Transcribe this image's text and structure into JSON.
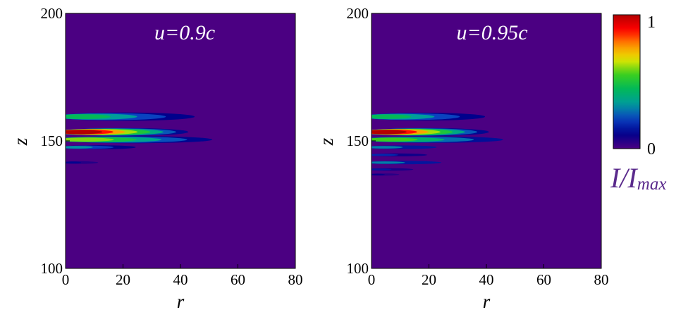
{
  "colormap": {
    "background": "#4b0082",
    "stops": [
      "#4b0082",
      "#00008b",
      "#0a40c0",
      "#009c9c",
      "#00b85a",
      "#3ccf1e",
      "#e6e600",
      "#ff8c00",
      "#ff0000",
      "#b40000"
    ]
  },
  "colorbar": {
    "max_label": "1",
    "min_label": "0",
    "label_main": "I/I",
    "label_sub": "max"
  },
  "chart_data": [
    {
      "type": "heatmap",
      "annotation": "u=0.9c",
      "xlabel": "r",
      "ylabel": "z",
      "xlim": [
        0,
        80
      ],
      "ylim": [
        100,
        200
      ],
      "xticks": [
        "0",
        "20",
        "40",
        "60",
        "80"
      ],
      "yticks": [
        "100",
        "150",
        "200"
      ],
      "bands": [
        {
          "z": 159.5,
          "r_end": 50,
          "intensity": 0.45,
          "width": 1.7
        },
        {
          "z": 153.5,
          "r_end": 46,
          "intensity": 1.0,
          "width": 1.5
        },
        {
          "z": 150.5,
          "r_end": 56,
          "intensity": 0.6,
          "width": 1.4
        },
        {
          "z": 147.5,
          "r_end": 28,
          "intensity": 0.32,
          "width": 0.8
        },
        {
          "z": 141.5,
          "r_end": 14,
          "intensity": 0.12,
          "width": 0.5
        }
      ]
    },
    {
      "type": "heatmap",
      "annotation": "u=0.95c",
      "xlabel": "r",
      "ylabel": "z",
      "xlim": [
        0,
        80
      ],
      "ylim": [
        100,
        200
      ],
      "xticks": [
        "0",
        "20",
        "40",
        "60",
        "80"
      ],
      "yticks": [
        "100",
        "150",
        "200"
      ],
      "bands": [
        {
          "z": 159.5,
          "r_end": 44,
          "intensity": 0.45,
          "width": 1.6
        },
        {
          "z": 153.5,
          "r_end": 44,
          "intensity": 1.0,
          "width": 1.5
        },
        {
          "z": 150.5,
          "r_end": 51,
          "intensity": 0.55,
          "width": 1.3
        },
        {
          "z": 147.5,
          "r_end": 28,
          "intensity": 0.3,
          "width": 0.8
        },
        {
          "z": 144.5,
          "r_end": 24,
          "intensity": 0.18,
          "width": 0.6
        },
        {
          "z": 141.5,
          "r_end": 30,
          "intensity": 0.3,
          "width": 0.7
        },
        {
          "z": 138.8,
          "r_end": 18,
          "intensity": 0.15,
          "width": 0.5
        },
        {
          "z": 136.8,
          "r_end": 12,
          "intensity": 0.1,
          "width": 0.4
        }
      ]
    }
  ]
}
